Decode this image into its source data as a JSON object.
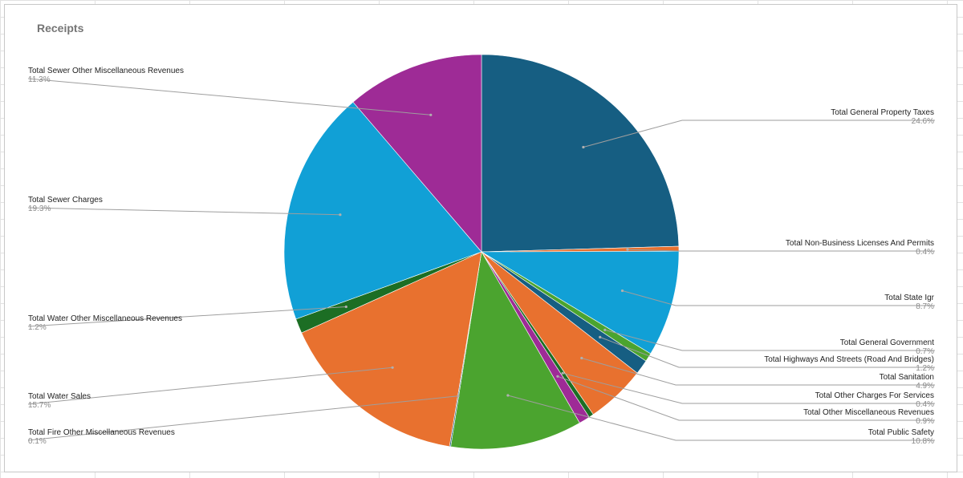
{
  "chart_data": {
    "type": "pie",
    "title": "Receipts",
    "slices": [
      {
        "name": "Total General Property Taxes",
        "value": 24.6,
        "label": "24.6%",
        "color": "#165e82"
      },
      {
        "name": "Total Non-Business Licenses And Permits",
        "value": 0.4,
        "label": "0.4%",
        "color": "#e8712f"
      },
      {
        "name": "Total State Igr",
        "value": 8.7,
        "label": "8.7%",
        "color": "#11a0d6"
      },
      {
        "name": "Total General Government",
        "value": 0.7,
        "label": "0.7%",
        "color": "#4ba42f"
      },
      {
        "name": "Total Highways And Streets (Road And Bridges)",
        "value": 1.2,
        "label": "1.2%",
        "color": "#165e82"
      },
      {
        "name": "Total Sanitation",
        "value": 4.9,
        "label": "4.9%",
        "color": "#e8712f"
      },
      {
        "name": "Total Other Charges For Services",
        "value": 0.4,
        "label": "0.4%",
        "color": "#1c6e24"
      },
      {
        "name": "Total Other Miscellaneous Revenues",
        "value": 0.9,
        "label": "0.9%",
        "color": "#9e2b96"
      },
      {
        "name": "Total Public Safety",
        "value": 10.8,
        "label": "10.8%",
        "color": "#4ba42f"
      },
      {
        "name": "Total Fire Other Miscellaneous Revenues",
        "value": 0.1,
        "label": "0.1%",
        "color": "#165e82"
      },
      {
        "name": "Total Water Sales",
        "value": 15.7,
        "label": "15.7%",
        "color": "#e8712f"
      },
      {
        "name": "Total Water Other Miscellaneous Revenues",
        "value": 1.2,
        "label": "1.2%",
        "color": "#1c6e24"
      },
      {
        "name": "Total Sewer Charges",
        "value": 19.3,
        "label": "19.3%",
        "color": "#11a0d6"
      },
      {
        "name": "Total Sewer Other Miscellaneous Revenues",
        "value": 11.3,
        "label": "11.3%",
        "color": "#9e2b96"
      }
    ]
  }
}
